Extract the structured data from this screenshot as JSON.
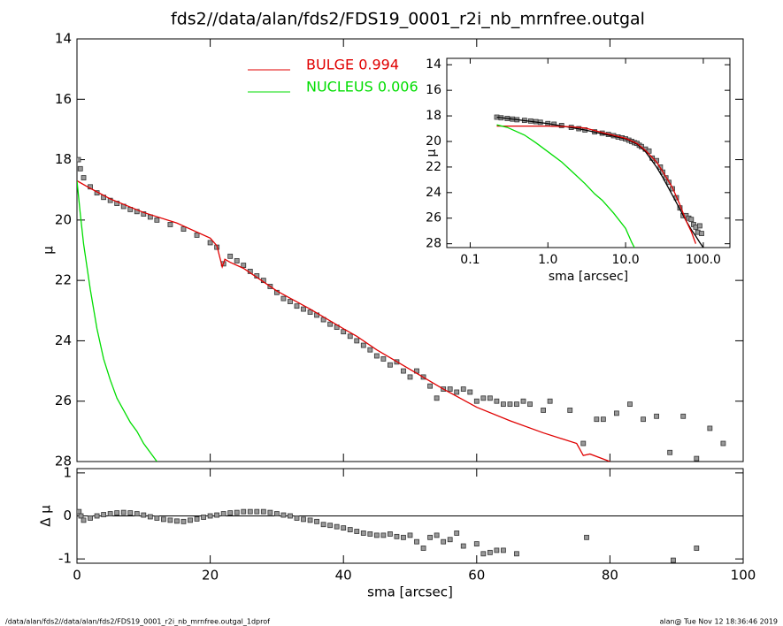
{
  "footer_left": "/data/alan/fds2//data/alan/fds2/FDS19_0001_r2i_nb_mrnfree.outgal_1dprof",
  "footer_right": "alan@  Tue Nov 12 18:36:46 2019",
  "chart_data": [
    {
      "type": "line",
      "title": "fds2//data/alan/fds2/FDS19_0001_r2i_nb_mrnfree.outgal",
      "y_label": "μ",
      "xlim": [
        0,
        100
      ],
      "xticks": [
        0,
        20,
        40,
        60,
        80,
        100
      ],
      "ylim": [
        28,
        14
      ],
      "yticks": [
        14,
        16,
        18,
        20,
        22,
        24,
        26,
        28
      ],
      "series": [
        {
          "type": "scatter",
          "color": "#999999",
          "x": [
            0.2,
            0.5,
            1,
            2,
            3,
            4,
            5,
            6,
            7,
            8,
            9,
            10,
            11,
            12,
            14,
            16,
            18,
            20,
            21,
            22,
            23,
            24,
            25,
            26,
            27,
            28,
            29,
            30,
            31,
            32,
            33,
            34,
            35,
            36,
            37,
            38,
            39,
            40,
            41,
            42,
            43,
            44,
            45,
            46,
            47,
            48,
            49,
            50,
            51,
            52,
            53,
            54,
            55,
            56,
            57,
            58,
            59,
            60,
            61,
            62,
            63,
            64,
            65,
            66,
            67,
            68,
            70,
            71,
            74,
            76,
            78,
            79,
            81,
            83,
            85,
            87,
            89,
            91,
            93,
            95,
            97
          ],
          "values": [
            18.0,
            18.3,
            18.6,
            18.9,
            19.1,
            19.25,
            19.35,
            19.45,
            19.55,
            19.65,
            19.72,
            19.8,
            19.9,
            20.0,
            20.15,
            20.3,
            20.5,
            20.75,
            20.9,
            21.45,
            21.2,
            21.35,
            21.5,
            21.7,
            21.85,
            22.0,
            22.2,
            22.4,
            22.6,
            22.7,
            22.85,
            22.95,
            23.05,
            23.15,
            23.3,
            23.45,
            23.55,
            23.7,
            23.85,
            24.0,
            24.15,
            24.3,
            24.5,
            24.6,
            24.8,
            24.7,
            25.0,
            25.2,
            25.0,
            25.2,
            25.5,
            25.9,
            25.6,
            25.6,
            25.7,
            25.6,
            25.7,
            26.0,
            25.9,
            25.9,
            26.0,
            26.1,
            26.1,
            26.1,
            26.0,
            26.1,
            26.3,
            26.0,
            26.3,
            27.4,
            26.6,
            26.6,
            26.4,
            26.1,
            26.6,
            26.5,
            27.7,
            26.5,
            27.9,
            26.9,
            27.4
          ]
        },
        {
          "type": "line",
          "name": "BULGE  0.994",
          "color": "#e00000",
          "x": [
            0,
            2,
            5,
            10,
            15,
            20,
            21,
            21.8,
            22.2,
            23,
            25,
            30,
            35,
            40,
            42,
            45,
            50,
            55,
            60,
            65,
            70,
            75,
            76,
            77,
            80
          ],
          "values": [
            18.7,
            18.95,
            19.3,
            19.75,
            20.1,
            20.6,
            20.85,
            21.55,
            21.3,
            21.4,
            21.6,
            22.35,
            22.95,
            23.6,
            23.85,
            24.3,
            24.95,
            25.6,
            26.2,
            26.65,
            27.05,
            27.4,
            27.8,
            27.75,
            28.0
          ]
        },
        {
          "type": "line",
          "name": "NUCLEUS  0.006",
          "color": "#00dd00",
          "x": [
            0,
            0.5,
            1,
            2,
            3,
            4,
            5,
            6,
            7,
            8,
            9,
            10,
            11,
            12
          ],
          "values": [
            18.7,
            19.8,
            20.8,
            22.3,
            23.6,
            24.6,
            25.3,
            25.9,
            26.3,
            26.7,
            27.0,
            27.4,
            27.7,
            28.0
          ]
        }
      ]
    },
    {
      "type": "scatter",
      "x_label": "sma [arcsec]",
      "y_label": "Δ μ",
      "xlim": [
        0,
        100
      ],
      "xticks": [
        0,
        20,
        40,
        60,
        80,
        100
      ],
      "ylim": [
        -1.1,
        1.1
      ],
      "yticks": [
        -1,
        0,
        1
      ],
      "hline": 0,
      "series": [
        {
          "type": "scatter",
          "color": "#999999",
          "x": [
            0.3,
            0.6,
            1,
            2,
            3,
            4,
            5,
            6,
            7,
            8,
            9,
            10,
            11,
            12,
            13,
            14,
            15,
            16,
            17,
            18,
            19,
            20,
            21,
            22,
            23,
            24,
            25,
            26,
            27,
            28,
            29,
            30,
            31,
            32,
            33,
            34,
            35,
            36,
            37,
            38,
            39,
            40,
            41,
            42,
            43,
            44,
            45,
            46,
            47,
            48,
            49,
            50,
            51,
            52,
            53,
            54,
            55,
            56,
            57,
            58,
            60,
            61,
            62,
            63,
            64,
            66,
            76.5,
            89.5,
            93
          ],
          "values": [
            0.1,
            0.0,
            -0.1,
            -0.05,
            0.0,
            0.03,
            0.05,
            0.07,
            0.08,
            0.07,
            0.05,
            0.02,
            -0.02,
            -0.05,
            -0.08,
            -0.1,
            -0.12,
            -0.13,
            -0.1,
            -0.07,
            -0.03,
            0.0,
            0.02,
            0.05,
            0.07,
            0.08,
            0.1,
            0.1,
            0.1,
            0.1,
            0.08,
            0.05,
            0.02,
            0.0,
            -0.05,
            -0.08,
            -0.1,
            -0.13,
            -0.2,
            -0.22,
            -0.25,
            -0.28,
            -0.32,
            -0.36,
            -0.4,
            -0.42,
            -0.45,
            -0.45,
            -0.42,
            -0.48,
            -0.5,
            -0.45,
            -0.6,
            -0.75,
            -0.5,
            -0.45,
            -0.6,
            -0.55,
            -0.4,
            -0.7,
            -0.65,
            -0.88,
            -0.85,
            -0.8,
            -0.8,
            -0.88,
            -0.5,
            -1.03,
            -0.75
          ]
        }
      ]
    },
    {
      "type": "line",
      "x_label": "sma [arcsec]",
      "y_label": "μ",
      "xlog": true,
      "xlim": [
        0.05,
        220
      ],
      "xticks": [
        {
          "value": 0.1,
          "label": "0.1"
        },
        {
          "value": 1,
          "label": "1.0"
        },
        {
          "value": 10,
          "label": "10.0"
        },
        {
          "value": 100,
          "label": "100.0"
        }
      ],
      "ylim": [
        28.3,
        13.5
      ],
      "yticks": [
        14,
        16,
        18,
        20,
        22,
        24,
        26,
        28
      ],
      "series": [
        {
          "type": "scatter",
          "color": "#999999",
          "x": [
            0.22,
            0.25,
            0.3,
            0.35,
            0.4,
            0.5,
            0.6,
            0.7,
            0.8,
            1,
            1.2,
            1.5,
            2,
            2.5,
            3,
            4,
            5,
            6,
            7,
            8,
            9,
            10,
            11,
            12,
            13,
            14,
            15,
            16,
            18,
            20,
            22,
            25,
            28,
            30,
            33,
            36,
            40,
            45,
            50,
            55,
            60,
            65,
            70,
            75,
            80,
            85,
            90,
            95
          ],
          "values": [
            18.1,
            18.15,
            18.2,
            18.25,
            18.3,
            18.35,
            18.4,
            18.45,
            18.5,
            18.6,
            18.65,
            18.75,
            18.9,
            19.0,
            19.1,
            19.25,
            19.35,
            19.45,
            19.55,
            19.65,
            19.72,
            19.8,
            19.9,
            20.0,
            20.1,
            20.15,
            20.3,
            20.4,
            20.6,
            20.75,
            21.3,
            21.5,
            22.0,
            22.4,
            22.85,
            23.2,
            23.7,
            24.4,
            25.2,
            25.8,
            25.8,
            26.0,
            26.1,
            26.5,
            26.7,
            27.1,
            26.6,
            27.2
          ]
        },
        {
          "type": "line",
          "color": "#000000",
          "x": [
            0.22,
            1,
            3,
            10,
            14,
            18,
            25,
            30,
            40,
            50,
            60,
            70,
            80,
            90,
            100
          ],
          "values": [
            18.1,
            18.6,
            19.1,
            19.8,
            20.2,
            20.8,
            22.0,
            22.8,
            24.2,
            25.3,
            26.2,
            26.9,
            27.4,
            27.9,
            28.3
          ]
        },
        {
          "type": "line",
          "color": "#e00000",
          "x": [
            0.22,
            0.5,
            1,
            2,
            3,
            5,
            10,
            14,
            18,
            25,
            30,
            40,
            50,
            60,
            70,
            80
          ],
          "values": [
            18.8,
            18.8,
            18.8,
            18.85,
            18.95,
            19.3,
            19.75,
            20.15,
            20.7,
            21.6,
            22.35,
            23.6,
            24.95,
            26.2,
            27.05,
            28.0
          ]
        },
        {
          "type": "line",
          "color": "#00dd00",
          "x": [
            0.22,
            0.3,
            0.5,
            0.7,
            1,
            1.5,
            2,
            3,
            4,
            5,
            7,
            10,
            12,
            13
          ],
          "values": [
            18.7,
            18.9,
            19.5,
            20.1,
            20.8,
            21.6,
            22.3,
            23.3,
            24.1,
            24.6,
            25.6,
            26.8,
            27.9,
            28.3
          ]
        }
      ]
    }
  ]
}
